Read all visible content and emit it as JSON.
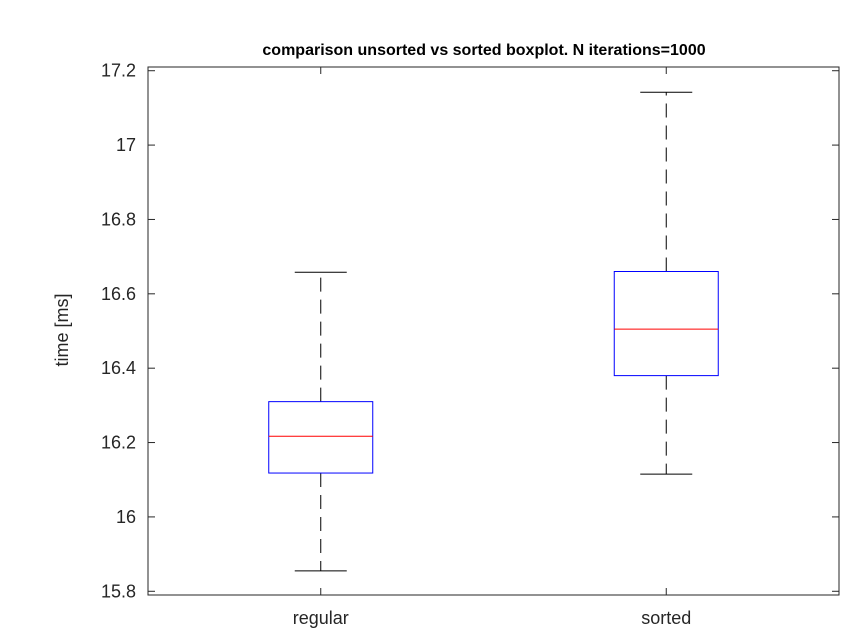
{
  "chart_data": {
    "type": "boxplot",
    "title": "comparison unsorted vs sorted boxplot. N iterations=1000",
    "xlabel": "",
    "ylabel": "time [ms]",
    "ylim": [
      15.79,
      17.21
    ],
    "yticks": [
      15.8,
      16,
      16.2,
      16.4,
      16.6,
      16.8,
      17,
      17.2
    ],
    "ytick_labels": [
      "15.8",
      "16",
      "16.2",
      "16.4",
      "16.6",
      "16.8",
      "17",
      "17.2"
    ],
    "categories": [
      "regular",
      "sorted"
    ],
    "boxes": [
      {
        "category": "regular",
        "whisker_low": 15.855,
        "q1": 16.118,
        "median": 16.217,
        "q3": 16.31,
        "whisker_high": 16.658
      },
      {
        "category": "sorted",
        "whisker_low": 16.115,
        "q1": 16.38,
        "median": 16.505,
        "q3": 16.66,
        "whisker_high": 17.142
      }
    ],
    "grid": false,
    "colors": {
      "box": "#0000ff",
      "median": "#ff0000",
      "whisker": "#000000",
      "axis": "#262626"
    }
  }
}
